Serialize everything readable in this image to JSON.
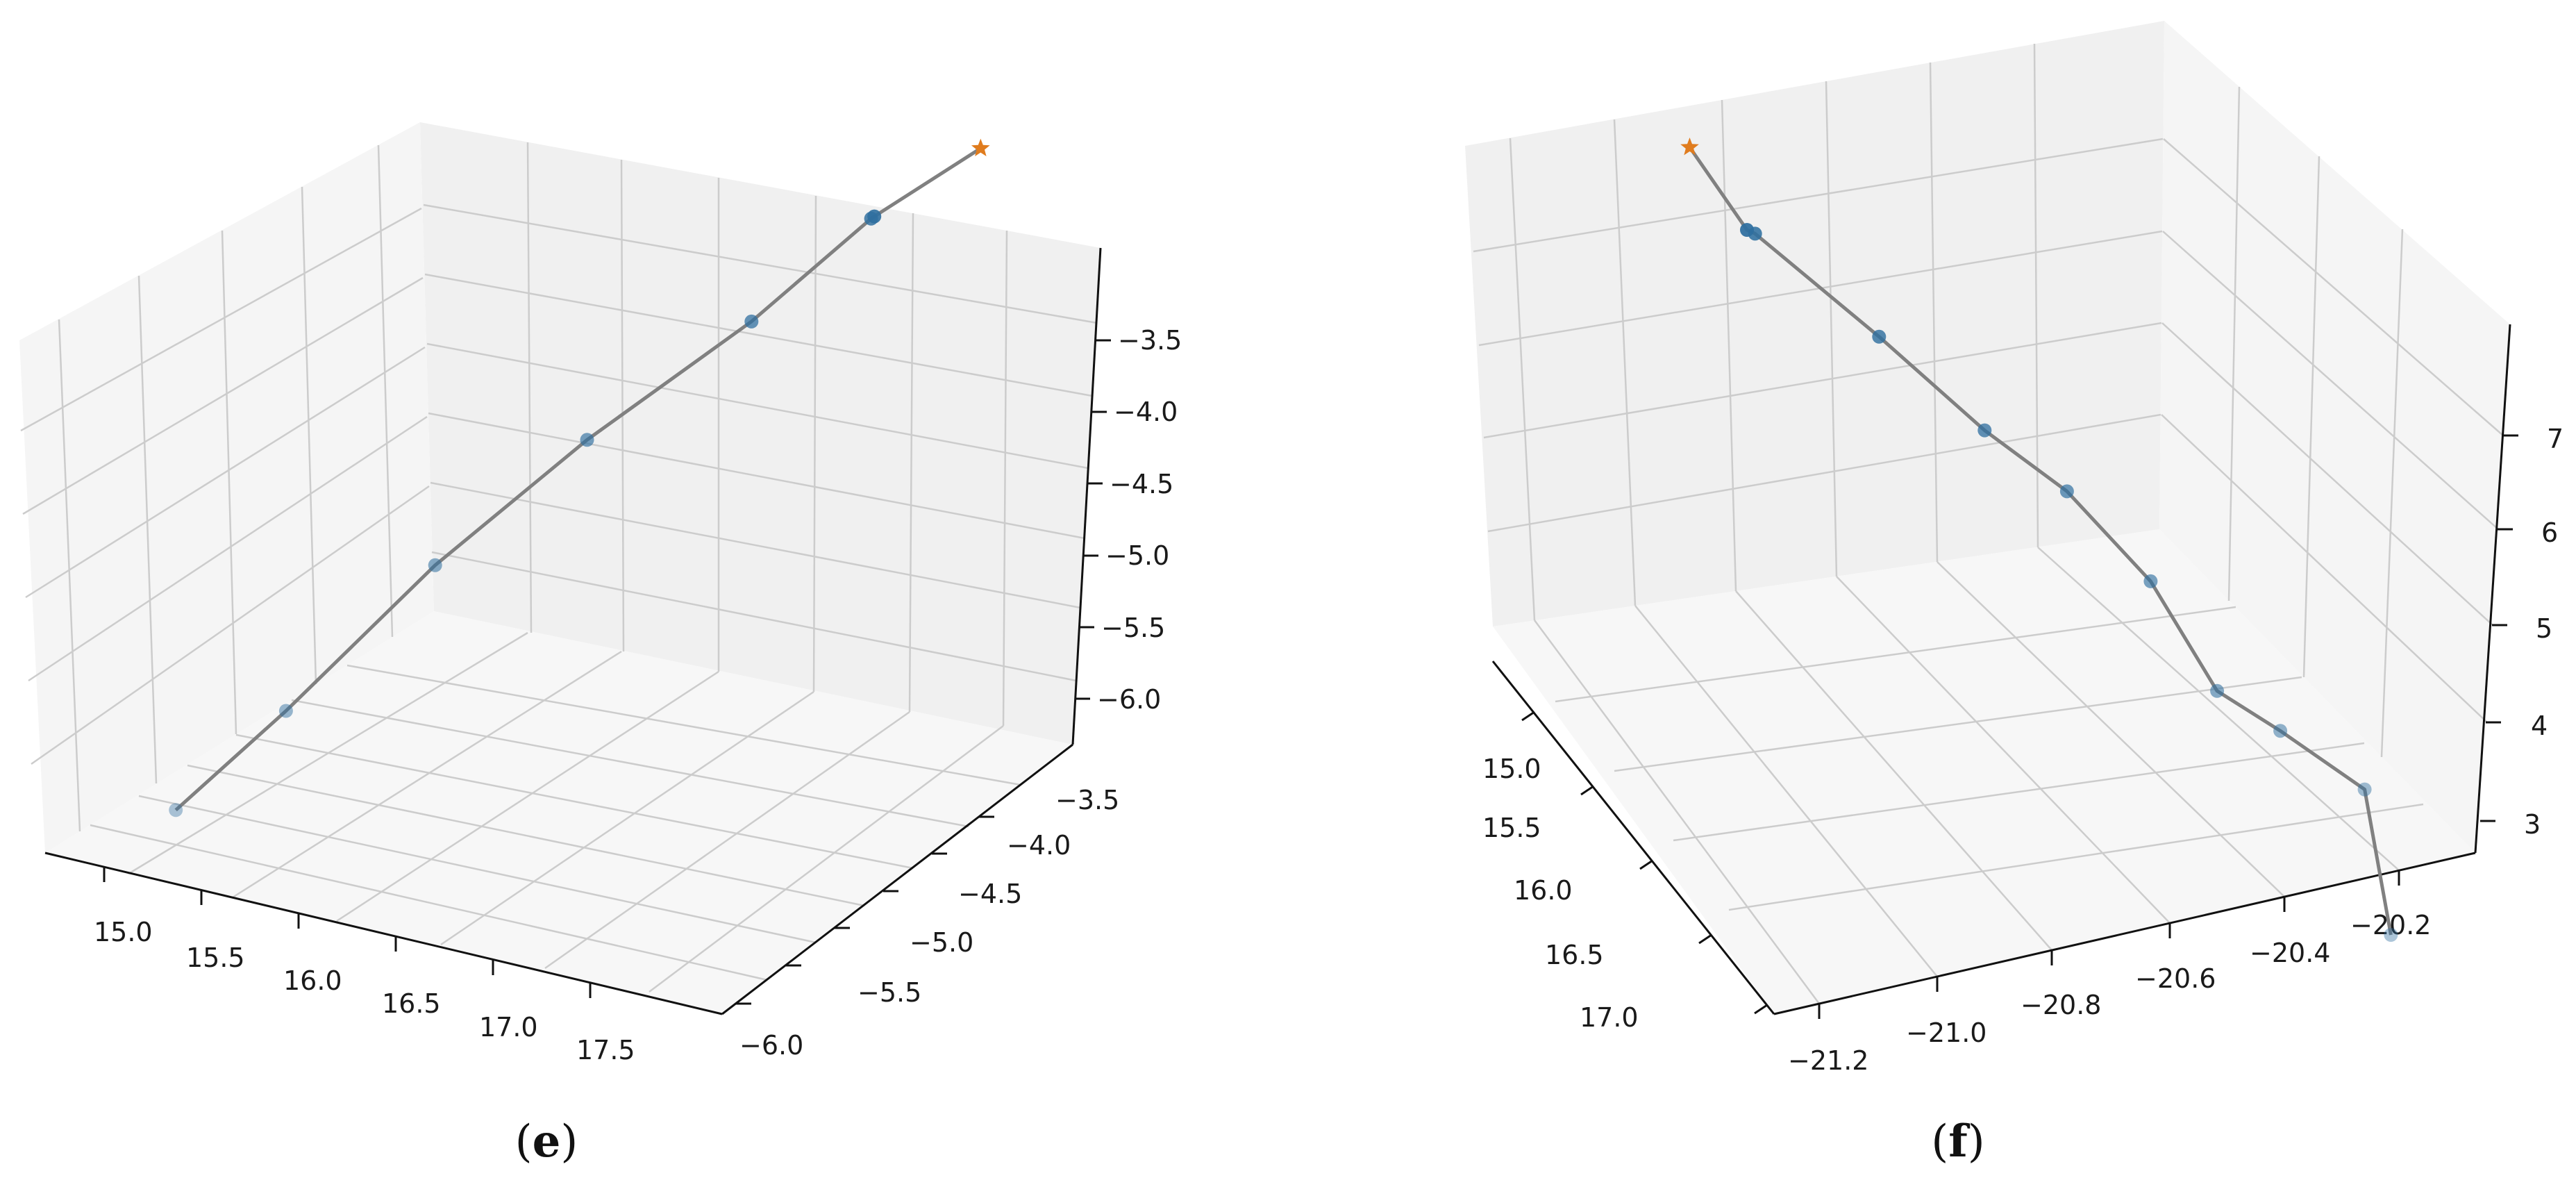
{
  "colors": {
    "pane_back": "#f0f0f0",
    "pane_side": "#f5f5f5",
    "pane_floor": "#f7f7f7",
    "grid": "#cccccc",
    "axis": "#111111",
    "path_line": "#808080",
    "points": "#2f6f9f",
    "endpoint_star": "#e07c1e"
  },
  "chart_data": [
    {
      "type": "scatter",
      "projection": "3d",
      "caption_open": "(",
      "caption_letter": "e",
      "caption_close": ")",
      "x_ticks": [
        "15.0",
        "15.5",
        "16.0",
        "16.5",
        "17.0",
        "17.5"
      ],
      "y_ticks": [
        "−3.5",
        "−4.0",
        "−4.5",
        "−5.0",
        "−5.5",
        "−6.0"
      ],
      "z_ticks": [
        "−3.5",
        "−4.0",
        "−4.5",
        "−5.0",
        "−5.5",
        "−6.0"
      ],
      "xlim": [
        14.8,
        17.7
      ],
      "ylim": [
        -6.1,
        -3.3
      ],
      "zlim": [
        -6.3,
        -3.2
      ],
      "grid": true,
      "path": [
        {
          "x": 14.85,
          "y": -5.3,
          "z": -6.2,
          "marker": "circle"
        },
        {
          "x": 15.2,
          "y": -5.0,
          "z": -5.75,
          "marker": "circle"
        },
        {
          "x": 15.7,
          "y": -4.7,
          "z": -5.1,
          "marker": "circle"
        },
        {
          "x": 16.2,
          "y": -4.35,
          "z": -4.55,
          "marker": "circle"
        },
        {
          "x": 16.75,
          "y": -4.0,
          "z": -4.05,
          "marker": "circle"
        },
        {
          "x": 17.15,
          "y": -3.75,
          "z": -3.6,
          "marker": "circle"
        },
        {
          "x": 17.16,
          "y": -3.74,
          "z": -3.59,
          "marker": "circle"
        },
        {
          "x": 17.5,
          "y": -3.45,
          "z": -3.3,
          "marker": "star"
        }
      ]
    },
    {
      "type": "scatter",
      "projection": "3d",
      "caption_open": "(",
      "caption_letter": "f",
      "caption_close": ")",
      "x_ticks": [
        "15.0",
        "15.5",
        "16.0",
        "16.5",
        "17.0"
      ],
      "y_ticks": [
        "−21.2",
        "−21.0",
        "−20.8",
        "−20.6",
        "−20.4",
        "−20.2"
      ],
      "z_ticks": [
        "3",
        "4",
        "5",
        "6",
        "7"
      ],
      "xlim": [
        14.9,
        17.1
      ],
      "ylim": [
        -21.3,
        -20.1
      ],
      "zlim": [
        2.6,
        7.8
      ],
      "grid": true,
      "path": [
        {
          "x": 15.0,
          "y": -20.2,
          "z": 3.0,
          "marker": "circle"
        },
        {
          "x": 15.05,
          "y": -20.22,
          "z": 4.2,
          "marker": "circle"
        },
        {
          "x": 15.25,
          "y": -20.35,
          "z": 4.45,
          "marker": "circle"
        },
        {
          "x": 15.4,
          "y": -20.45,
          "z": 4.6,
          "marker": "circle"
        },
        {
          "x": 15.55,
          "y": -20.55,
          "z": 5.35,
          "marker": "circle"
        },
        {
          "x": 15.75,
          "y": -20.65,
          "z": 5.9,
          "marker": "circle"
        },
        {
          "x": 15.95,
          "y": -20.75,
          "z": 6.2,
          "marker": "circle"
        },
        {
          "x": 16.2,
          "y": -20.9,
          "z": 6.7,
          "marker": "circle"
        },
        {
          "x": 16.5,
          "y": -21.05,
          "z": 7.25,
          "marker": "circle"
        },
        {
          "x": 16.52,
          "y": -21.06,
          "z": 7.26,
          "marker": "circle"
        },
        {
          "x": 16.65,
          "y": -21.15,
          "z": 7.8,
          "marker": "star"
        }
      ]
    }
  ]
}
